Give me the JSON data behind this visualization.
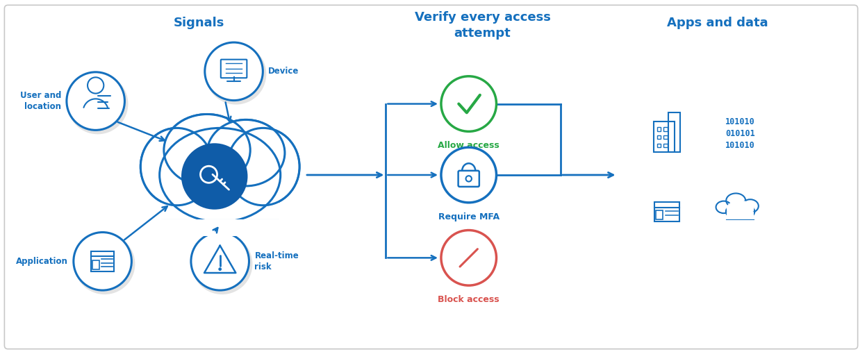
{
  "bg_color": "#ffffff",
  "blue": "#1570BE",
  "dark_blue": "#0F5CA8",
  "green": "#27A845",
  "red": "#D9534F",
  "light_gray": "#e8e8e8",
  "title_signals": "Signals",
  "title_verify": "Verify every access\nattempt",
  "title_apps": "Apps and data",
  "label_user": "User and\nlocation",
  "label_device": "Device",
  "label_app": "Application",
  "label_risk": "Real-time\nrisk",
  "label_allow": "Allow access",
  "label_mfa": "Require MFA",
  "label_block": "Block access",
  "binary_line1": "101010",
  "binary_line2": "010101",
  "binary_line3": "101010"
}
